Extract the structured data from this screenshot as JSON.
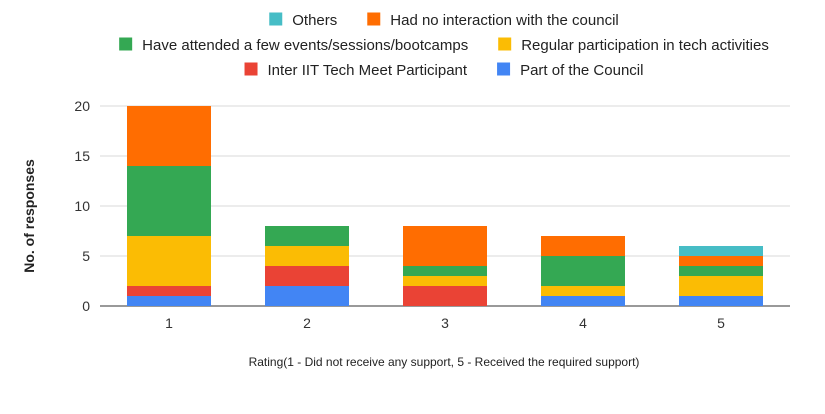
{
  "chart_data": {
    "type": "bar",
    "stacked": true,
    "title": "",
    "xlabel": "Rating(1 - Did not receive any support, 5 - Received the required support)",
    "ylabel": "No. of responses",
    "ylim": [
      0,
      20
    ],
    "yticks": [
      0,
      5,
      10,
      15,
      20
    ],
    "grid": true,
    "legend_position": "top",
    "categories": [
      "1",
      "2",
      "3",
      "4",
      "5"
    ],
    "series": [
      {
        "name": "Part of the Council",
        "color": "#4285F4",
        "values": [
          1,
          2,
          0,
          1,
          1
        ]
      },
      {
        "name": "Inter IIT Tech Meet Participant",
        "color": "#EA4335",
        "values": [
          1,
          2,
          2,
          0,
          0
        ]
      },
      {
        "name": "Regular participation in tech activities",
        "color": "#FBBC04",
        "values": [
          5,
          2,
          1,
          1,
          2
        ]
      },
      {
        "name": "Have attended a few events/sessions/bootcamps",
        "color": "#34A853",
        "values": [
          7,
          2,
          1,
          3,
          1
        ]
      },
      {
        "name": "Had no interaction with the council",
        "color": "#FF6D01",
        "values": [
          6,
          0,
          4,
          2,
          1
        ]
      },
      {
        "name": "Others",
        "color": "#46BDC6",
        "values": [
          0,
          0,
          0,
          0,
          1
        ]
      }
    ],
    "legend_rows": [
      [
        "Others",
        "Had no interaction with the council"
      ],
      [
        "Have attended a few events/sessions/bootcamps",
        "Regular participation in tech activities"
      ],
      [
        "Inter IIT Tech Meet Participant",
        "Part of the Council"
      ]
    ]
  }
}
